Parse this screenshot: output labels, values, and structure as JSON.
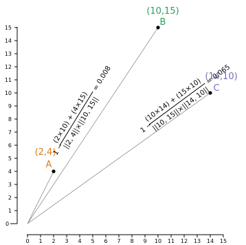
{
  "axes": {
    "x_ticks": [
      "0",
      "1",
      "2",
      "3",
      "4",
      "5",
      "6",
      "7",
      "8",
      "9",
      "10",
      "11",
      "12",
      "13",
      "14",
      "15"
    ],
    "y_ticks": [
      "1",
      "2",
      "3",
      "4",
      "5",
      "6",
      "7",
      "8",
      "9",
      "10",
      "11",
      "12",
      "13",
      "14",
      "15"
    ],
    "y_zero": "0"
  },
  "points": [
    {
      "id": "A",
      "coord_label": "(2,4)",
      "x": 2,
      "y": 4,
      "color": "#e07b1a"
    },
    {
      "id": "B",
      "coord_label": "(10,15)",
      "x": 10,
      "y": 15,
      "color": "#2e9e5a"
    },
    {
      "id": "C",
      "coord_label": "(14,10)",
      "x": 14,
      "y": 10,
      "color": "#7b6bb5"
    }
  ],
  "formulas": {
    "ab": {
      "prefix": "1 −",
      "numerator": "(2×10) + (4×15)",
      "denominator": "||2, 4||×||10, 15||",
      "result": "= 0.008"
    },
    "bc": {
      "prefix": "1 −",
      "numerator": "(10×14) + (15×10)",
      "denominator": "||10, 15||×||14, 10||",
      "result": "= 0.065"
    }
  },
  "colors": {
    "axis": "#000000",
    "vector_line": "#999999",
    "point_dot": "#000000"
  }
}
